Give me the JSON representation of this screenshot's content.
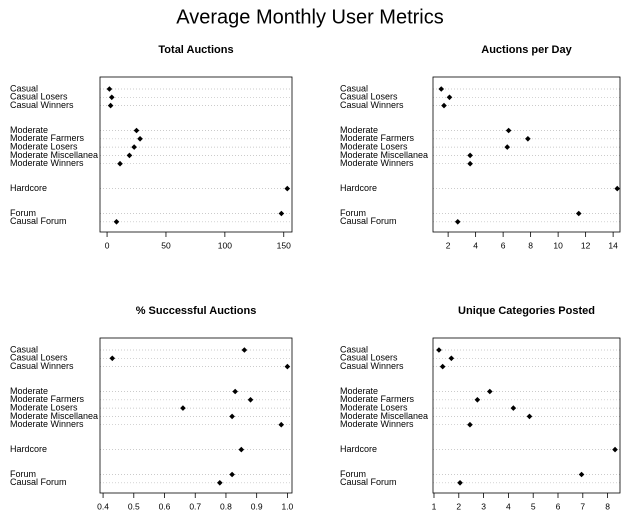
{
  "title": "Average Monthly User Metrics",
  "chart_data": [
    {
      "type": "dot",
      "title": "Total Auctions",
      "categories": [
        "Casual",
        "Casual Losers",
        "Casual Winners",
        "Moderate",
        "Moderate Farmers",
        "Moderate Losers",
        "Moderate Miscellanea",
        "Moderate Winners",
        "Hardcore",
        "Forum",
        "Causal Forum"
      ],
      "values": [
        2,
        4,
        3,
        25,
        28,
        23,
        19,
        11,
        153,
        148,
        8
      ],
      "xlim": [
        -6,
        157
      ],
      "xticks": [
        0,
        50,
        100,
        150
      ],
      "grid": true,
      "color": "#000000"
    },
    {
      "type": "dot",
      "title": "Auctions per Day",
      "categories": [
        "Casual",
        "Casual Losers",
        "Casual Winners",
        "Moderate",
        "Moderate Farmers",
        "Moderate Losers",
        "Moderate Miscellanea",
        "Moderate Winners",
        "Hardcore",
        "Forum",
        "Causal Forum"
      ],
      "values": [
        1.5,
        2.1,
        1.7,
        6.4,
        7.8,
        6.3,
        3.6,
        3.6,
        14.3,
        11.5,
        2.7
      ],
      "xlim": [
        0.9,
        14.5
      ],
      "xticks": [
        2,
        4,
        6,
        8,
        10,
        12,
        14
      ],
      "grid": true,
      "color": "#000000"
    },
    {
      "type": "dot",
      "title": "% Successful Auctions",
      "categories": [
        "Casual",
        "Casual Losers",
        "Casual Winners",
        "Moderate",
        "Moderate Farmers",
        "Moderate Losers",
        "Moderate Miscellanea",
        "Moderate Winners",
        "Hardcore",
        "Forum",
        "Causal Forum"
      ],
      "values": [
        0.86,
        0.43,
        1.0,
        0.83,
        0.88,
        0.66,
        0.82,
        0.98,
        0.85,
        0.82,
        0.78
      ],
      "xlim": [
        0.39,
        1.015
      ],
      "xticks": [
        0.4,
        0.5,
        0.6,
        0.7,
        0.8,
        0.9,
        {
          "value": 1,
          "label": "1.0"
        }
      ],
      "grid": true,
      "color": "#000000"
    },
    {
      "type": "dot",
      "title": "Unique Categories Posted",
      "categories": [
        "Casual",
        "Casual Losers",
        "Casual Winners",
        "Moderate",
        "Moderate Farmers",
        "Moderate Losers",
        "Moderate Miscellanea",
        "Moderate Winners",
        "Hardcore",
        "Forum",
        "Causal Forum"
      ],
      "values": [
        1.2,
        1.7,
        1.35,
        3.25,
        2.75,
        4.2,
        4.85,
        2.45,
        8.3,
        6.95,
        2.05
      ],
      "xlim": [
        0.96,
        8.5
      ],
      "xticks": [
        1,
        2,
        3,
        4,
        5,
        6,
        7,
        8
      ],
      "grid": true,
      "color": "#000000"
    }
  ]
}
